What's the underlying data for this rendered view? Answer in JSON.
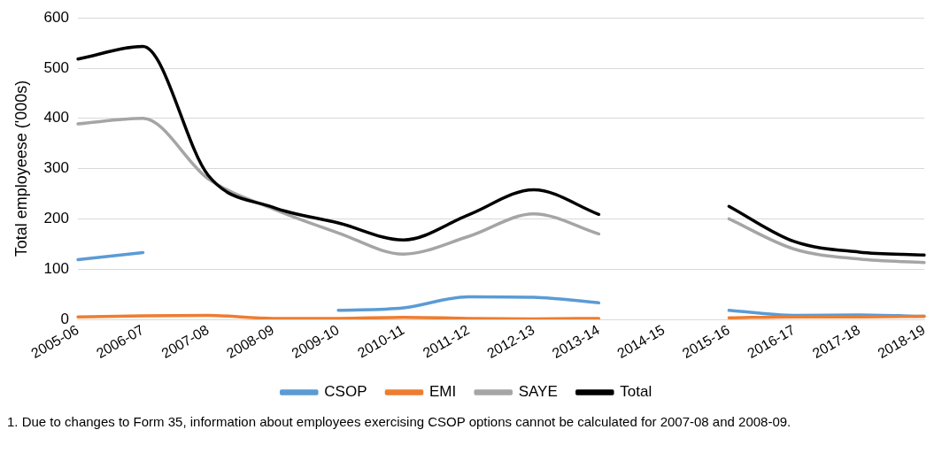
{
  "chart_data": {
    "type": "line",
    "ylabel": "Total employeese ('000s)",
    "categories": [
      "2005-06",
      "2006-07",
      "2007-08",
      "2008-09",
      "2009-10",
      "2010-11",
      "2011-12",
      "2012-13",
      "2013-14",
      "2014-15",
      "2015-16",
      "2016-17",
      "2017-18",
      "2018-19"
    ],
    "series": [
      {
        "name": "CSOP",
        "color": "#5b9bd5",
        "values": [
          119,
          133,
          null,
          null,
          18,
          23,
          45,
          44,
          33,
          null,
          18,
          8,
          9,
          6
        ]
      },
      {
        "name": "EMI",
        "color": "#ed7d31",
        "values": [
          5,
          7,
          8,
          2,
          2,
          4,
          2,
          1,
          2,
          null,
          3,
          5,
          5,
          6
        ]
      },
      {
        "name": "SAYE",
        "color": "#a5a5a5",
        "values": [
          389,
          400,
          280,
          220,
          172,
          130,
          165,
          210,
          170,
          null,
          200,
          140,
          120,
          113
        ]
      },
      {
        "name": "Total",
        "color": "#000000",
        "values": [
          518,
          543,
          287,
          223,
          192,
          158,
          208,
          258,
          209,
          null,
          225,
          155,
          134,
          128
        ]
      }
    ],
    "ylim": [
      0,
      600
    ],
    "yticks": [
      0,
      100,
      200,
      300,
      400,
      500,
      600
    ],
    "grid": "y",
    "legend": "bottom",
    "marker": "none",
    "annotations": [
      "1. Due to changes to Form 35, information about employees exercising CSOP options cannot be calculated for 2007-08 and 2008-09."
    ]
  }
}
